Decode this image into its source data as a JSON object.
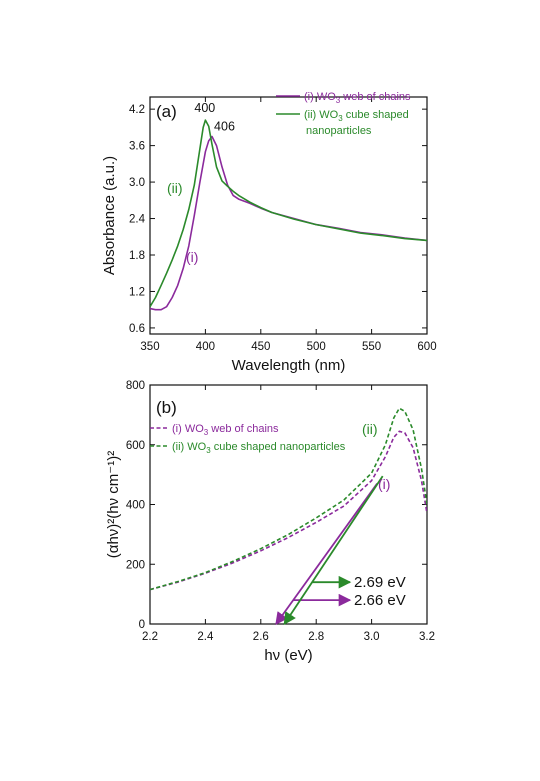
{
  "colors": {
    "series_i": "#8b2a9c",
    "series_ii": "#2b8a2b",
    "axis": "#111111"
  },
  "chart_data": [
    {
      "type": "line",
      "panel_label": "(a)",
      "xlabel": "Wavelength (nm)",
      "ylabel": "Absorbance (a.u.)",
      "xlim": [
        350,
        600
      ],
      "ylim": [
        0.5,
        4.4
      ],
      "xticks": [
        "350",
        "400",
        "450",
        "500",
        "550",
        "600"
      ],
      "yticks": [
        "0.6",
        "1.2",
        "1.8",
        "2.4",
        "3.0",
        "3.6",
        "4.2"
      ],
      "grid": false,
      "legend_position": "top-right",
      "series": [
        {
          "label": "(i) WO3 web of chains",
          "label_prefix": "(i) WO",
          "label_sub": "3",
          "label_suffix": " web of chains",
          "tag": "(i)",
          "peak": "406",
          "x": [
            350,
            355,
            360,
            365,
            370,
            375,
            380,
            385,
            390,
            395,
            400,
            403,
            406,
            410,
            415,
            420,
            425,
            430,
            440,
            450,
            460,
            480,
            500,
            520,
            540,
            560,
            580,
            600
          ],
          "y": [
            0.92,
            0.9,
            0.9,
            0.95,
            1.1,
            1.3,
            1.58,
            1.95,
            2.45,
            3.0,
            3.5,
            3.68,
            3.75,
            3.6,
            3.25,
            2.95,
            2.78,
            2.72,
            2.65,
            2.57,
            2.5,
            2.4,
            2.3,
            2.24,
            2.17,
            2.13,
            2.08,
            2.04
          ]
        },
        {
          "label": "(ii) WO3 cube shaped nanoparticles",
          "label_prefix": "(ii) WO",
          "label_sub": "3",
          "label_suffix": " cube shaped",
          "label_line2": "nanoparticles",
          "tag": "(ii)",
          "peak": "400",
          "x": [
            350,
            355,
            360,
            365,
            370,
            375,
            380,
            385,
            390,
            395,
            398,
            400,
            403,
            406,
            410,
            415,
            420,
            425,
            430,
            440,
            450,
            460,
            480,
            500,
            520,
            540,
            560,
            580,
            600
          ],
          "y": [
            0.95,
            1.1,
            1.3,
            1.5,
            1.72,
            1.95,
            2.22,
            2.55,
            2.95,
            3.55,
            3.9,
            4.02,
            3.92,
            3.62,
            3.25,
            3.02,
            2.93,
            2.85,
            2.78,
            2.67,
            2.58,
            2.5,
            2.39,
            2.3,
            2.23,
            2.16,
            2.12,
            2.07,
            2.04
          ]
        }
      ]
    },
    {
      "type": "line",
      "panel_label": "(b)",
      "xlabel": "hν (eV)",
      "ylabel": "(αhν)²(hν cm⁻¹)²",
      "xlim": [
        2.2,
        3.2
      ],
      "ylim": [
        0,
        800
      ],
      "xticks": [
        "2.2",
        "2.4",
        "2.6",
        "2.8",
        "3.0",
        "3.2"
      ],
      "yticks": [
        "0",
        "200",
        "400",
        "600",
        "800"
      ],
      "grid": false,
      "legend_position": "top-left",
      "series": [
        {
          "label": "(i) WO3 web of chains",
          "label_prefix": "(i) WO",
          "label_sub": "3",
          "label_suffix": " web of chains",
          "tag": "(i)",
          "x": [
            2.2,
            2.3,
            2.4,
            2.5,
            2.6,
            2.7,
            2.8,
            2.9,
            3.0,
            3.05,
            3.08,
            3.1,
            3.12,
            3.15,
            3.18,
            3.2
          ],
          "y": [
            115,
            140,
            170,
            205,
            245,
            290,
            340,
            395,
            480,
            560,
            625,
            645,
            640,
            590,
            480,
            370
          ]
        },
        {
          "label": "(ii) WO3 cube shaped nanoparticles",
          "label_prefix": "(ii) WO",
          "label_sub": "3",
          "label_suffix": " cube shaped nanoparticles",
          "tag": "(ii)",
          "x": [
            2.2,
            2.3,
            2.4,
            2.5,
            2.6,
            2.7,
            2.8,
            2.9,
            3.0,
            3.05,
            3.08,
            3.1,
            3.12,
            3.15,
            3.18,
            3.2
          ],
          "y": [
            115,
            142,
            172,
            210,
            252,
            300,
            355,
            415,
            505,
            600,
            690,
            722,
            712,
            650,
            520,
            400
          ]
        }
      ],
      "tauc_fits": [
        {
          "series": "(i)",
          "from": [
            3.02,
            470
          ],
          "to": [
            2.655,
            0
          ],
          "value_label": "2.66 eV",
          "arrow_y": 80
        },
        {
          "series": "(ii)",
          "from": [
            3.04,
            495
          ],
          "to": [
            2.685,
            0
          ],
          "value_label": "2.69 eV",
          "arrow_y": 140
        }
      ]
    }
  ]
}
